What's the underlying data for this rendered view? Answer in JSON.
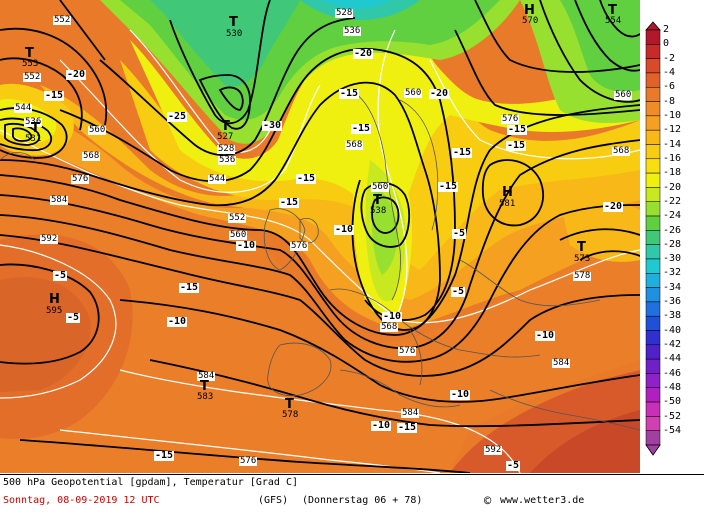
{
  "map": {
    "height_labels": [
      "552",
      "528",
      "536",
      "530",
      "570",
      "554",
      "553",
      "552",
      "544",
      "536",
      "531",
      "560",
      "568",
      "576",
      "584",
      "592",
      "527",
      "528",
      "536",
      "544",
      "552",
      "560",
      "568",
      "560",
      "568",
      "538",
      "560",
      "576",
      "568",
      "576",
      "581",
      "560",
      "568",
      "573",
      "578",
      "576",
      "584",
      "595",
      "584",
      "583",
      "578",
      "584",
      "576",
      "584",
      "592",
      "584"
    ],
    "temp_labels": [
      "-20",
      "-15",
      "-25",
      "-30",
      "-20",
      "-20",
      "-15",
      "-15",
      "-15",
      "-15",
      "-20",
      "-15",
      "-15",
      "-15",
      "-15",
      "-20",
      "-10",
      "-10",
      "-5",
      "-5",
      "-10",
      "-15",
      "-10",
      "-10",
      "-10",
      "-10",
      "-5",
      "-10",
      "-15",
      "-15",
      "-10",
      "-10"
    ],
    "pressure_centers": [
      {
        "sym": "T",
        "val": "530"
      },
      {
        "sym": "H",
        "val": "570"
      },
      {
        "sym": "T",
        "val": "554"
      },
      {
        "sym": "T",
        "val": "553"
      },
      {
        "sym": "T",
        "val": "531"
      },
      {
        "sym": "T",
        "val": "527"
      },
      {
        "sym": "T",
        "val": "538"
      },
      {
        "sym": "H",
        "val": "581"
      },
      {
        "sym": "T",
        "val": "573"
      },
      {
        "sym": "H",
        "val": "595"
      },
      {
        "sym": "T",
        "val": "583"
      },
      {
        "sym": "T",
        "val": "578"
      }
    ]
  },
  "legend": {
    "labels": [
      "2",
      "0",
      "-2",
      "-4",
      "-6",
      "-8",
      "-10",
      "-12",
      "-14",
      "-16",
      "-18",
      "-20",
      "-22",
      "-24",
      "-26",
      "-28",
      "-30",
      "-32",
      "-34",
      "-36",
      "-38",
      "-40",
      "-42",
      "-44",
      "-46",
      "-48",
      "-50",
      "-52",
      "-54"
    ],
    "colors": [
      "#b2182b",
      "#c62a2a",
      "#d84a2a",
      "#e0622a",
      "#e87a2a",
      "#f08c28",
      "#f5a020",
      "#f8b818",
      "#f8cc10",
      "#f8e010",
      "#f0f010",
      "#c8e820",
      "#98e030",
      "#60d040",
      "#40c878",
      "#30c8a8",
      "#20c8d0",
      "#20b0e0",
      "#2090e0",
      "#2070e0",
      "#2050d8",
      "#3030d0",
      "#5020c8",
      "#7020c8",
      "#9020c8",
      "#b020c0",
      "#c830b8",
      "#d040b0",
      "#a040a0"
    ]
  },
  "footer": {
    "line1": "500 hPa Geopotential [gpdam], Temperatur [Grad C]",
    "date": "Sonntag, 08-09-2019  12 UTC",
    "model": "(GFS)",
    "forecast": "(Donnerstag 06 + 78)",
    "copyright_symbol": "©",
    "site": "www.wetter3.de"
  }
}
